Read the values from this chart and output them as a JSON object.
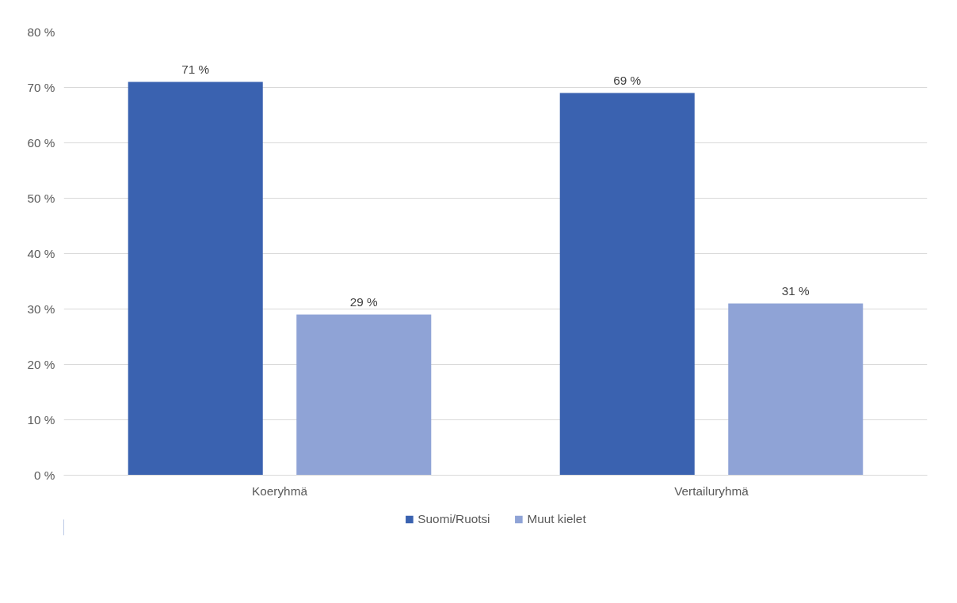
{
  "chart_data": {
    "type": "bar",
    "categories": [
      "Koeryhmä",
      "Vertailuryhmä"
    ],
    "series": [
      {
        "name": "Suomi/Ruotsi",
        "color": "#3a62b0",
        "values": [
          71,
          69
        ],
        "value_labels": [
          "71 %",
          "69 %"
        ]
      },
      {
        "name": "Muut kielet",
        "color": "#8fa3d6",
        "values": [
          29,
          31
        ],
        "value_labels": [
          "29 %",
          "31 %"
        ]
      }
    ],
    "ylim": [
      0,
      80
    ],
    "yticks": [
      {
        "value": 0,
        "label": "0 %"
      },
      {
        "value": 10,
        "label": "10 %"
      },
      {
        "value": 20,
        "label": "20 %"
      },
      {
        "value": 30,
        "label": "30 %"
      },
      {
        "value": 40,
        "label": "40 %"
      },
      {
        "value": 50,
        "label": "50 %"
      },
      {
        "value": 60,
        "label": "60 %"
      },
      {
        "value": 70,
        "label": "70 %"
      },
      {
        "value": 80,
        "label": "80 %"
      }
    ],
    "grid": "y",
    "legend": "bottom"
  }
}
